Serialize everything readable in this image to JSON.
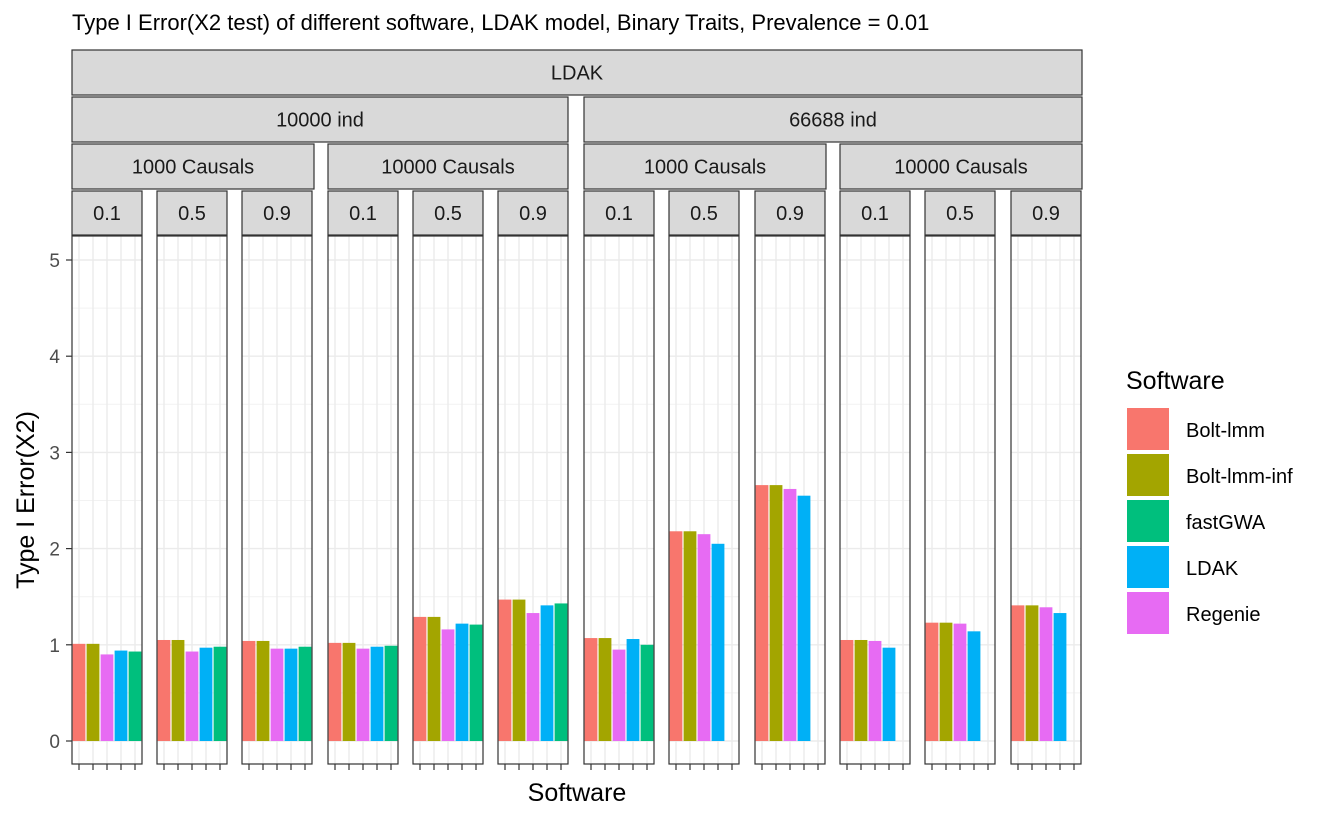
{
  "chart_data": {
    "type": "bar",
    "title": "Type I Error(X2 test) of different software, LDAK model, Binary Traits, Prevalence = 0.01",
    "xlabel": "Software",
    "ylabel": "Type I Error(X2)",
    "ylim": [
      0,
      5.2
    ],
    "yticks": [
      0,
      1,
      2,
      3,
      4,
      5
    ],
    "grid": true,
    "legend_position": "right",
    "legend_title": "Software",
    "series": [
      {
        "name": "Bolt-lmm",
        "color": "#F8766D"
      },
      {
        "name": "Bolt-lmm-inf",
        "color": "#A3A500"
      },
      {
        "name": "fastGWA",
        "color": "#00BF7D"
      },
      {
        "name": "LDAK",
        "color": "#00B0F6"
      },
      {
        "name": "Regenie",
        "color": "#E76BF3"
      }
    ],
    "bar_order": [
      "Bolt-lmm",
      "Bolt-lmm-inf",
      "Regenie",
      "LDAK",
      "fastGWA"
    ],
    "facet_levels": {
      "model": [
        "LDAK"
      ],
      "individuals": [
        "10000 ind",
        "66688 ind"
      ],
      "causals": [
        "1000 Causals",
        "10000 Causals"
      ],
      "heritability": [
        "0.1",
        "0.5",
        "0.9"
      ]
    },
    "panels": [
      {
        "individuals": "10000 ind",
        "causals": "1000 Causals",
        "heritability": "0.1",
        "values": {
          "Bolt-lmm": 1.01,
          "Bolt-lmm-inf": 1.01,
          "Regenie": 0.9,
          "LDAK": 0.94,
          "fastGWA": 0.93
        }
      },
      {
        "individuals": "10000 ind",
        "causals": "1000 Causals",
        "heritability": "0.5",
        "values": {
          "Bolt-lmm": 1.05,
          "Bolt-lmm-inf": 1.05,
          "Regenie": 0.93,
          "LDAK": 0.97,
          "fastGWA": 0.98
        }
      },
      {
        "individuals": "10000 ind",
        "causals": "1000 Causals",
        "heritability": "0.9",
        "values": {
          "Bolt-lmm": 1.04,
          "Bolt-lmm-inf": 1.04,
          "Regenie": 0.96,
          "LDAK": 0.96,
          "fastGWA": 0.98
        }
      },
      {
        "individuals": "10000 ind",
        "causals": "10000 Causals",
        "heritability": "0.1",
        "values": {
          "Bolt-lmm": 1.02,
          "Bolt-lmm-inf": 1.02,
          "Regenie": 0.96,
          "LDAK": 0.98,
          "fastGWA": 0.99
        }
      },
      {
        "individuals": "10000 ind",
        "causals": "10000 Causals",
        "heritability": "0.5",
        "values": {
          "Bolt-lmm": 1.29,
          "Bolt-lmm-inf": 1.29,
          "Regenie": 1.16,
          "LDAK": 1.22,
          "fastGWA": 1.21
        }
      },
      {
        "individuals": "10000 ind",
        "causals": "10000 Causals",
        "heritability": "0.9",
        "values": {
          "Bolt-lmm": 1.47,
          "Bolt-lmm-inf": 1.47,
          "Regenie": 1.33,
          "LDAK": 1.41,
          "fastGWA": 1.43
        }
      },
      {
        "individuals": "66688 ind",
        "causals": "1000 Causals",
        "heritability": "0.1",
        "values": {
          "Bolt-lmm": 1.07,
          "Bolt-lmm-inf": 1.07,
          "Regenie": 0.95,
          "LDAK": 1.06,
          "fastGWA": 1.0
        }
      },
      {
        "individuals": "66688 ind",
        "causals": "1000 Causals",
        "heritability": "0.5",
        "values": {
          "Bolt-lmm": 2.18,
          "Bolt-lmm-inf": 2.18,
          "Regenie": 2.15,
          "LDAK": 2.05
        }
      },
      {
        "individuals": "66688 ind",
        "causals": "1000 Causals",
        "heritability": "0.9",
        "values": {
          "Bolt-lmm": 2.66,
          "Bolt-lmm-inf": 2.66,
          "Regenie": 2.62,
          "LDAK": 2.55
        }
      },
      {
        "individuals": "66688 ind",
        "causals": "10000 Causals",
        "heritability": "0.1",
        "values": {
          "Bolt-lmm": 1.05,
          "Bolt-lmm-inf": 1.05,
          "Regenie": 1.04,
          "LDAK": 0.97
        }
      },
      {
        "individuals": "66688 ind",
        "causals": "10000 Causals",
        "heritability": "0.5",
        "values": {
          "Bolt-lmm": 1.23,
          "Bolt-lmm-inf": 1.23,
          "Regenie": 1.22,
          "LDAK": 1.14
        }
      },
      {
        "individuals": "66688 ind",
        "causals": "10000 Causals",
        "heritability": "0.9",
        "values": {
          "Bolt-lmm": 1.41,
          "Bolt-lmm-inf": 1.41,
          "Regenie": 1.39,
          "LDAK": 1.33
        }
      }
    ]
  }
}
